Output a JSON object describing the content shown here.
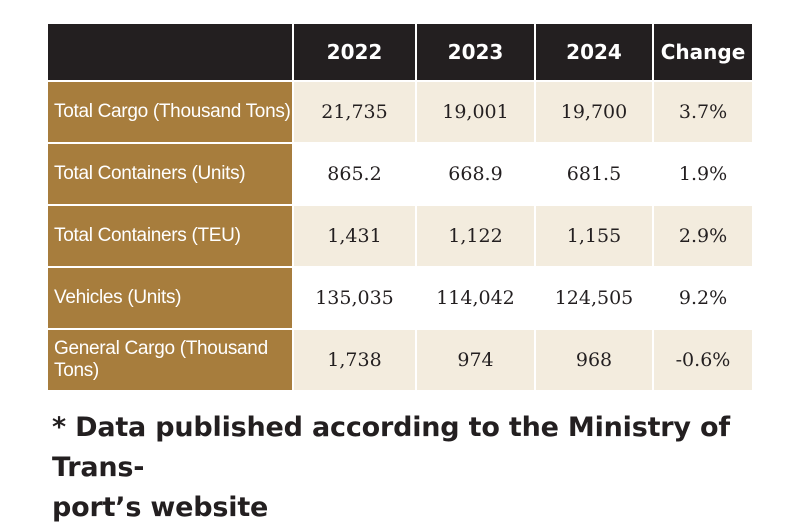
{
  "table": {
    "headers": [
      "",
      "2022",
      "2023",
      "2024",
      "Change"
    ],
    "rows": [
      {
        "label": "Total Cargo (Thousand Tons)",
        "values": [
          "21,735",
          "19,001",
          "19,700",
          "3.7%"
        ]
      },
      {
        "label": "Total Containers (Units)",
        "values": [
          "865.2",
          "668.9",
          "681.5",
          "1.9%"
        ]
      },
      {
        "label": "Total Containers (TEU)",
        "values": [
          "1,431",
          "1,122",
          "1,155",
          "2.9%"
        ]
      },
      {
        "label": "Vehicles (Units)",
        "values": [
          "135,035",
          "114,042",
          "124,505",
          "9.2%"
        ]
      },
      {
        "label": "General Cargo (Thousand Tons)",
        "values": [
          "1,738",
          "974",
          "968",
          "-0.6%"
        ]
      }
    ]
  },
  "footnote": {
    "line1": "* Data published according to the Ministry of Trans-",
    "line2": "port’s website"
  },
  "colors": {
    "header_bg": "#231f20",
    "label_bg": "#a77d3d",
    "stripe_bg": "#f3ecde"
  }
}
